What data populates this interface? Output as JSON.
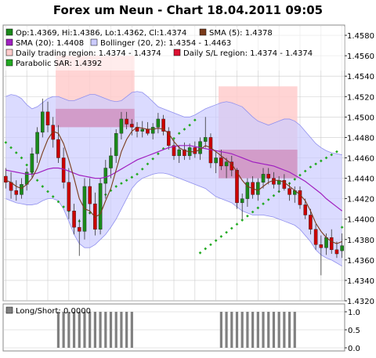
{
  "title": "Forex um Neun - Chart 18.04.2011 09:05",
  "colors": {
    "up_candle": "#1a8a1a",
    "down_candle": "#cc0000",
    "sma5": "#7a3b1a",
    "sma20": "#a020c0",
    "bollinger_fill": "#ccccff",
    "bollinger_line": "#9090ee",
    "daily_trading_region": "#ffcccc",
    "daily_sl_region": "#dd1133",
    "parabolic_sar": "#22aa22",
    "longshort_bar": "#808080",
    "grid": "#cccccc"
  },
  "chart_data": [
    {
      "type": "candlestick",
      "legend_placement": "top-left",
      "grid": true,
      "legend": {
        "ohlc": "Op:1.4369, Hi:1.4386, Lo:1.4362, Cl:1.4374",
        "sma5": "SMA (5): 1.4378",
        "sma20": "SMA (20): 1.4408",
        "bollinger": "Bollinger (20, 2): 1.4354 - 1.4463",
        "daily_trading_region": "Daily trading region: 1.4374 - 1.4374",
        "daily_sl_region": "Daily S/L region: 1.4374 - 1.4374",
        "parabolic_sar": "Parabolic SAR: 1.4392"
      },
      "ylim": [
        1.432,
        1.459
      ],
      "yticks": [
        "1.4580",
        "1.4560",
        "1.4540",
        "1.4520",
        "1.4500",
        "1.4480",
        "1.4460",
        "1.4440",
        "1.4420",
        "1.4400",
        "1.4380",
        "1.4360",
        "1.4340",
        "1.4320"
      ],
      "candles": [
        [
          1.4442,
          1.445,
          1.443,
          1.4436
        ],
        [
          1.4436,
          1.4446,
          1.442,
          1.4428
        ],
        [
          1.4428,
          1.4438,
          1.4418,
          1.4424
        ],
        [
          1.4424,
          1.444,
          1.442,
          1.4434
        ],
        [
          1.4434,
          1.445,
          1.4428,
          1.4446
        ],
        [
          1.4446,
          1.447,
          1.444,
          1.4464
        ],
        [
          1.4464,
          1.449,
          1.4455,
          1.4485
        ],
        [
          1.4485,
          1.4518,
          1.448,
          1.4505
        ],
        [
          1.4505,
          1.4515,
          1.4485,
          1.4492
        ],
        [
          1.4492,
          1.45,
          1.447,
          1.4478
        ],
        [
          1.4478,
          1.4492,
          1.4455,
          1.446
        ],
        [
          1.446,
          1.447,
          1.443,
          1.4436
        ],
        [
          1.4436,
          1.445,
          1.44,
          1.4408
        ],
        [
          1.4408,
          1.4415,
          1.4385,
          1.4392
        ],
        [
          1.4392,
          1.44,
          1.4364,
          1.4388
        ],
        [
          1.4388,
          1.444,
          1.438,
          1.4432
        ],
        [
          1.4432,
          1.444,
          1.4405,
          1.4415
        ],
        [
          1.4415,
          1.4426,
          1.4384,
          1.439
        ],
        [
          1.439,
          1.444,
          1.4385,
          1.4435
        ],
        [
          1.4435,
          1.4458,
          1.442,
          1.445
        ],
        [
          1.445,
          1.447,
          1.444,
          1.4462
        ],
        [
          1.4462,
          1.4488,
          1.4455,
          1.4484
        ],
        [
          1.4484,
          1.4505,
          1.4478,
          1.4498
        ],
        [
          1.4498,
          1.4505,
          1.4488,
          1.4493
        ],
        [
          1.4493,
          1.4498,
          1.4482,
          1.449
        ],
        [
          1.449,
          1.4495,
          1.448,
          1.4486
        ],
        [
          1.4486,
          1.4496,
          1.448,
          1.4488
        ],
        [
          1.4488,
          1.4495,
          1.4482,
          1.4484
        ],
        [
          1.4484,
          1.4494,
          1.4478,
          1.449
        ],
        [
          1.449,
          1.4504,
          1.4484,
          1.4498
        ],
        [
          1.4498,
          1.4502,
          1.4482,
          1.4486
        ],
        [
          1.4486,
          1.449,
          1.4468,
          1.4472
        ],
        [
          1.4472,
          1.4478,
          1.4458,
          1.4462
        ],
        [
          1.4462,
          1.4472,
          1.4455,
          1.4468
        ],
        [
          1.4468,
          1.4475,
          1.4458,
          1.4462
        ],
        [
          1.4462,
          1.4474,
          1.4458,
          1.447
        ],
        [
          1.447,
          1.4476,
          1.446,
          1.4464
        ],
        [
          1.4464,
          1.448,
          1.4458,
          1.4476
        ],
        [
          1.4476,
          1.45,
          1.447,
          1.448
        ],
        [
          1.448,
          1.4484,
          1.445,
          1.4455
        ],
        [
          1.4455,
          1.4466,
          1.4445,
          1.446
        ],
        [
          1.446,
          1.4468,
          1.4448,
          1.4452
        ],
        [
          1.4452,
          1.446,
          1.444,
          1.4456
        ],
        [
          1.4456,
          1.4462,
          1.4442,
          1.4448
        ],
        [
          1.4448,
          1.445,
          1.441,
          1.4416
        ],
        [
          1.4416,
          1.4425,
          1.44,
          1.442
        ],
        [
          1.442,
          1.444,
          1.4412,
          1.4436
        ],
        [
          1.4436,
          1.4442,
          1.442,
          1.4424
        ],
        [
          1.4424,
          1.444,
          1.4418,
          1.4436
        ],
        [
          1.4436,
          1.445,
          1.443,
          1.4444
        ],
        [
          1.4444,
          1.445,
          1.4434,
          1.444
        ],
        [
          1.444,
          1.4446,
          1.443,
          1.4434
        ],
        [
          1.4434,
          1.4442,
          1.4426,
          1.4438
        ],
        [
          1.4438,
          1.4444,
          1.4428,
          1.443
        ],
        [
          1.443,
          1.4436,
          1.4418,
          1.4424
        ],
        [
          1.4424,
          1.4432,
          1.4416,
          1.4428
        ],
        [
          1.4428,
          1.4432,
          1.441,
          1.4414
        ],
        [
          1.4414,
          1.442,
          1.44,
          1.4404
        ],
        [
          1.4404,
          1.441,
          1.4385,
          1.439
        ],
        [
          1.439,
          1.4395,
          1.437,
          1.4375
        ],
        [
          1.4375,
          1.4384,
          1.4345,
          1.4372
        ],
        [
          1.4372,
          1.4386,
          1.4365,
          1.4382
        ],
        [
          1.4382,
          1.439,
          1.4366,
          1.437
        ],
        [
          1.437,
          1.4378,
          1.4362,
          1.4366
        ],
        [
          1.4369,
          1.4386,
          1.4362,
          1.4374
        ]
      ],
      "sma5": [
        1.4438,
        1.4436,
        1.4432,
        1.443,
        1.4434,
        1.444,
        1.445,
        1.4465,
        1.4478,
        1.4486,
        1.4484,
        1.4474,
        1.4458,
        1.444,
        1.442,
        1.441,
        1.4408,
        1.4402,
        1.4405,
        1.4418,
        1.443,
        1.4448,
        1.4466,
        1.4478,
        1.4486,
        1.449,
        1.4489,
        1.4488,
        1.4488,
        1.4489,
        1.4488,
        1.4484,
        1.4476,
        1.447,
        1.4467,
        1.4466,
        1.4466,
        1.4468,
        1.4472,
        1.447,
        1.4466,
        1.4462,
        1.4458,
        1.4454,
        1.4446,
        1.4438,
        1.4432,
        1.443,
        1.4428,
        1.4432,
        1.4436,
        1.4438,
        1.4438,
        1.4436,
        1.4432,
        1.4428,
        1.4424,
        1.4418,
        1.4408,
        1.4396,
        1.4388,
        1.4382,
        1.4378,
        1.4376,
        1.4378
      ],
      "sma20": [
        1.4448,
        1.4447,
        1.4446,
        1.4445,
        1.4444,
        1.4444,
        1.4445,
        1.4447,
        1.4449,
        1.445,
        1.445,
        1.4449,
        1.4447,
        1.4445,
        1.4443,
        1.4442,
        1.4441,
        1.444,
        1.444,
        1.4441,
        1.4443,
        1.4446,
        1.4449,
        1.4452,
        1.4455,
        1.4458,
        1.446,
        1.4462,
        1.4464,
        1.4466,
        1.4468,
        1.447,
        1.4471,
        1.4472,
        1.4472,
        1.4472,
        1.4471,
        1.447,
        1.4469,
        1.4468,
        1.4467,
        1.4466,
        1.4465,
        1.4464,
        1.4462,
        1.446,
        1.4458,
        1.4456,
        1.4455,
        1.4454,
        1.4453,
        1.4452,
        1.445,
        1.4448,
        1.4446,
        1.4443,
        1.444,
        1.4437,
        1.4433,
        1.4429,
        1.4425,
        1.442,
        1.4416,
        1.4412,
        1.4408
      ],
      "bollinger_upper": [
        1.452,
        1.4522,
        1.4521,
        1.4518,
        1.4512,
        1.4508,
        1.451,
        1.4514,
        1.4518,
        1.452,
        1.452,
        1.4518,
        1.4516,
        1.4516,
        1.4518,
        1.452,
        1.4522,
        1.4522,
        1.452,
        1.4518,
        1.4516,
        1.4515,
        1.4516,
        1.452,
        1.4524,
        1.4525,
        1.4524,
        1.452,
        1.4515,
        1.451,
        1.4508,
        1.4506,
        1.4504,
        1.4502,
        1.45,
        1.45,
        1.4502,
        1.4505,
        1.4508,
        1.451,
        1.4512,
        1.4514,
        1.4515,
        1.4514,
        1.4512,
        1.451,
        1.4505,
        1.45,
        1.4496,
        1.4494,
        1.4492,
        1.4494,
        1.4496,
        1.4498,
        1.4498,
        1.4496,
        1.4492,
        1.4486,
        1.448,
        1.4474,
        1.447,
        1.4467,
        1.4465,
        1.4464,
        1.4463
      ],
      "bollinger_lower": [
        1.442,
        1.4418,
        1.4416,
        1.4415,
        1.4414,
        1.4414,
        1.4415,
        1.4418,
        1.442,
        1.442,
        1.4418,
        1.441,
        1.4398,
        1.4385,
        1.4376,
        1.4372,
        1.4372,
        1.4375,
        1.438,
        1.4385,
        1.4392,
        1.44,
        1.441,
        1.442,
        1.443,
        1.4436,
        1.444,
        1.4442,
        1.4444,
        1.4445,
        1.4445,
        1.4444,
        1.4442,
        1.444,
        1.4438,
        1.4436,
        1.4434,
        1.4432,
        1.443,
        1.4426,
        1.4422,
        1.442,
        1.4418,
        1.4416,
        1.4412,
        1.4408,
        1.4406,
        1.4404,
        1.4404,
        1.4404,
        1.4403,
        1.4402,
        1.44,
        1.4398,
        1.4396,
        1.4394,
        1.439,
        1.4384,
        1.4378,
        1.437,
        1.4365,
        1.4362,
        1.436,
        1.4357,
        1.4354
      ],
      "parabolic_sar": [
        1.4475,
        1.447,
        1.4465,
        1.446,
        1.4453,
        1.4445,
        1.4438,
        1.4432,
        1.4427,
        1.4422,
        1.4417,
        1.4412,
        1.4408,
        1.4403,
        1.4398,
        1.44,
        1.4406,
        1.4412,
        1.4418,
        1.4424,
        1.4428,
        1.4432,
        1.4435,
        1.4438,
        1.4441,
        1.4444,
        1.4449,
        1.4454,
        1.4459,
        1.4464,
        1.4469,
        1.4474,
        1.4479,
        1.4484,
        1.4488,
        1.4492,
        1.4497,
        1.4367,
        1.4371,
        1.4375,
        1.4379,
        1.4383,
        1.4387,
        1.4391,
        1.4395,
        1.4399,
        1.4403,
        1.4407,
        1.4411,
        1.4415,
        1.4419,
        1.4423,
        1.4427,
        1.4431,
        1.4435,
        1.4439,
        1.4443,
        1.4447,
        1.4451,
        1.4454,
        1.4457,
        1.446,
        1.4463,
        1.4466,
        1.4392
      ],
      "daily_trading_regions": [
        {
          "start": 10,
          "end": 24,
          "low": 1.449,
          "high": 1.456
        },
        {
          "start": 41,
          "end": 55,
          "low": 1.444,
          "high": 1.453
        }
      ],
      "daily_sl_regions": [
        {
          "start": 10,
          "end": 24,
          "low": 1.449,
          "high": 1.4508
        },
        {
          "start": 41,
          "end": 55,
          "low": 1.444,
          "high": 1.4468
        }
      ]
    },
    {
      "type": "bar",
      "grid": true,
      "legend": {
        "longshort": "Long/Short: 0.0000"
      },
      "ylim": [
        0.0,
        1.0
      ],
      "yticks": [
        "1.0",
        "0.5",
        "0.0"
      ],
      "values": [
        0,
        0,
        0,
        0,
        0,
        0,
        0,
        0,
        0,
        0,
        1,
        1,
        1,
        1,
        1,
        1,
        1,
        1,
        1,
        1,
        1,
        1,
        1,
        1,
        1,
        0,
        0,
        0,
        0,
        0,
        0,
        0,
        0,
        0,
        0,
        0,
        0,
        0,
        0,
        0,
        0,
        1,
        1,
        1,
        1,
        1,
        1,
        1,
        1,
        1,
        1,
        1,
        1,
        1,
        1,
        1,
        0,
        0,
        0,
        0,
        0,
        0,
        0,
        0,
        0
      ]
    }
  ]
}
